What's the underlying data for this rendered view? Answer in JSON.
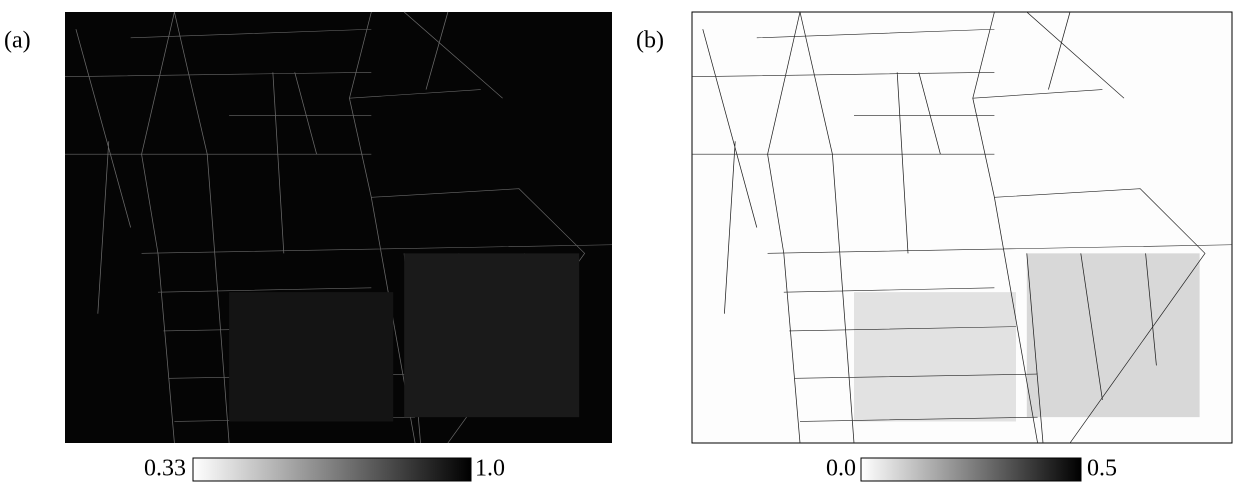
{
  "panels": [
    {
      "label": "(a)",
      "colorbar": {
        "min": "0.33",
        "max": "1.0"
      }
    },
    {
      "label": "(b)",
      "colorbar": {
        "min": "0.0",
        "max": "0.5"
      }
    }
  ]
}
